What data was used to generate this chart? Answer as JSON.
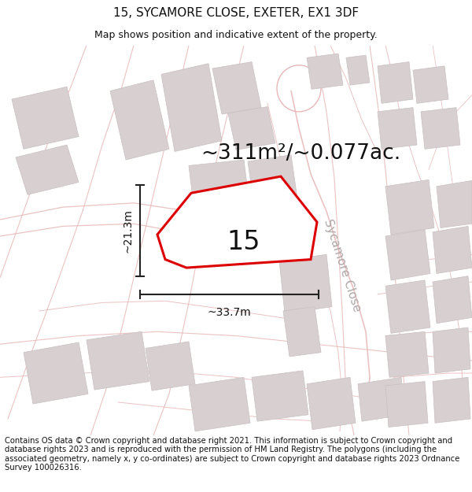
{
  "title_line1": "15, SYCAMORE CLOSE, EXETER, EX1 3DF",
  "title_line2": "Map shows position and indicative extent of the property.",
  "area_text": "~311m²/~0.077ac.",
  "property_number": "15",
  "width_label": "~33.7m",
  "height_label": "~21.3m",
  "sycamore_label": "Sycamore Close",
  "footer_text": "Contains OS data © Crown copyright and database right 2021. This information is subject to Crown copyright and database rights 2023 and is reproduced with the permission of HM Land Registry. The polygons (including the associated geometry, namely x, y co-ordinates) are subject to Crown copyright and database rights 2023 Ordnance Survey 100026316.",
  "bg_color": "#f8f5f5",
  "road_color": "#e8b8b8",
  "building_color": "#d8d0d0",
  "building_edge_color": "#c8c0c0",
  "plot_edge_color": "#dd0000",
  "plot_fill_color": "#ffffff",
  "dim_color": "#222222",
  "title_fontsize": 11,
  "subtitle_fontsize": 9,
  "area_fontsize": 19,
  "property_num_fontsize": 24,
  "footer_fontsize": 7.2,
  "sycamore_fontsize": 11
}
